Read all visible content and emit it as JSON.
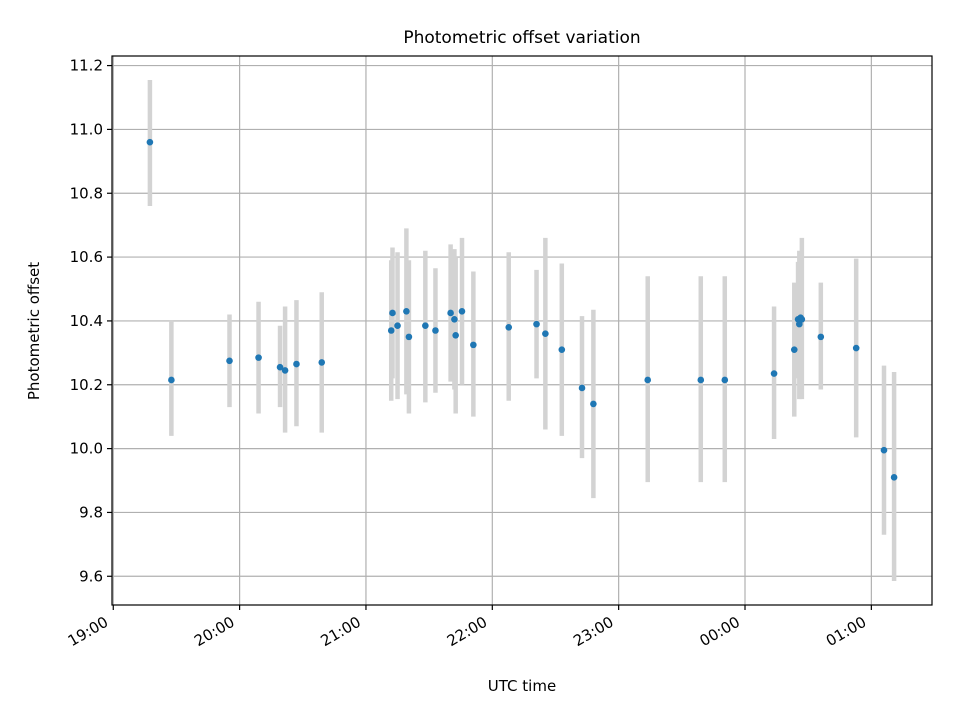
{
  "chart_data": {
    "type": "scatter",
    "title": "Photometric offset variation",
    "xlabel": "UTC time",
    "ylabel": "Photometric offset",
    "x_tick_labels": [
      "19:00",
      "20:00",
      "21:00",
      "22:00",
      "23:00",
      "00:00",
      "01:00"
    ],
    "x_ticks_hours": [
      0,
      1,
      2,
      3,
      4,
      5,
      6
    ],
    "xlim_hours": [
      -0.01,
      6.48
    ],
    "y_ticks": [
      9.6,
      9.8,
      10.0,
      10.2,
      10.4,
      10.6,
      10.8,
      11.0,
      11.2
    ],
    "y_tick_labels": [
      "9.6",
      "9.8",
      "10.0",
      "10.2",
      "10.4",
      "10.6",
      "10.8",
      "11.0",
      "11.2"
    ],
    "ylim": [
      9.51,
      11.23
    ],
    "grid": true,
    "colors": {
      "point": "#1f77b4",
      "errorbar": "#d3d3d3",
      "grid": "#b0b0b0"
    },
    "points": [
      {
        "t": 0.29,
        "y": 10.96,
        "lo": 10.76,
        "hi": 11.155
      },
      {
        "t": 0.46,
        "y": 10.215,
        "lo": 10.04,
        "hi": 10.4
      },
      {
        "t": 0.92,
        "y": 10.275,
        "lo": 10.13,
        "hi": 10.42
      },
      {
        "t": 1.15,
        "y": 10.285,
        "lo": 10.11,
        "hi": 10.46
      },
      {
        "t": 1.32,
        "y": 10.255,
        "lo": 10.13,
        "hi": 10.385
      },
      {
        "t": 1.36,
        "y": 10.245,
        "lo": 10.05,
        "hi": 10.445
      },
      {
        "t": 1.45,
        "y": 10.265,
        "lo": 10.07,
        "hi": 10.465
      },
      {
        "t": 1.65,
        "y": 10.27,
        "lo": 10.05,
        "hi": 10.49
      },
      {
        "t": 2.2,
        "y": 10.37,
        "lo": 10.15,
        "hi": 10.59
      },
      {
        "t": 2.21,
        "y": 10.425,
        "lo": 10.22,
        "hi": 10.63
      },
      {
        "t": 2.25,
        "y": 10.385,
        "lo": 10.155,
        "hi": 10.615
      },
      {
        "t": 2.32,
        "y": 10.43,
        "lo": 10.17,
        "hi": 10.69
      },
      {
        "t": 2.34,
        "y": 10.35,
        "lo": 10.11,
        "hi": 10.59
      },
      {
        "t": 2.47,
        "y": 10.385,
        "lo": 10.145,
        "hi": 10.62
      },
      {
        "t": 2.55,
        "y": 10.37,
        "lo": 10.175,
        "hi": 10.565
      },
      {
        "t": 2.67,
        "y": 10.425,
        "lo": 10.21,
        "hi": 10.64
      },
      {
        "t": 2.7,
        "y": 10.405,
        "lo": 10.185,
        "hi": 10.625
      },
      {
        "t": 2.71,
        "y": 10.355,
        "lo": 10.11,
        "hi": 10.6
      },
      {
        "t": 2.76,
        "y": 10.43,
        "lo": 10.2,
        "hi": 10.66
      },
      {
        "t": 2.85,
        "y": 10.325,
        "lo": 10.1,
        "hi": 10.555
      },
      {
        "t": 3.13,
        "y": 10.38,
        "lo": 10.15,
        "hi": 10.615
      },
      {
        "t": 3.35,
        "y": 10.39,
        "lo": 10.22,
        "hi": 10.56
      },
      {
        "t": 3.42,
        "y": 10.36,
        "lo": 10.06,
        "hi": 10.66
      },
      {
        "t": 3.55,
        "y": 10.31,
        "lo": 10.04,
        "hi": 10.58
      },
      {
        "t": 3.71,
        "y": 10.19,
        "lo": 9.97,
        "hi": 10.415
      },
      {
        "t": 3.8,
        "y": 10.14,
        "lo": 9.845,
        "hi": 10.435
      },
      {
        "t": 4.23,
        "y": 10.215,
        "lo": 9.895,
        "hi": 10.54
      },
      {
        "t": 4.65,
        "y": 10.215,
        "lo": 9.895,
        "hi": 10.54
      },
      {
        "t": 4.84,
        "y": 10.215,
        "lo": 9.895,
        "hi": 10.54
      },
      {
        "t": 5.23,
        "y": 10.235,
        "lo": 10.03,
        "hi": 10.445
      },
      {
        "t": 5.39,
        "y": 10.31,
        "lo": 10.1,
        "hi": 10.52
      },
      {
        "t": 5.42,
        "y": 10.405,
        "lo": 10.22,
        "hi": 10.585
      },
      {
        "t": 5.43,
        "y": 10.39,
        "lo": 10.155,
        "hi": 10.62
      },
      {
        "t": 5.44,
        "y": 10.41,
        "lo": 10.23,
        "hi": 10.59
      },
      {
        "t": 5.45,
        "y": 10.405,
        "lo": 10.155,
        "hi": 10.66
      },
      {
        "t": 5.6,
        "y": 10.35,
        "lo": 10.185,
        "hi": 10.52
      },
      {
        "t": 5.88,
        "y": 10.315,
        "lo": 10.035,
        "hi": 10.595
      },
      {
        "t": 6.1,
        "y": 9.995,
        "lo": 9.73,
        "hi": 10.26
      },
      {
        "t": 6.18,
        "y": 9.91,
        "lo": 9.585,
        "hi": 10.24
      }
    ]
  }
}
